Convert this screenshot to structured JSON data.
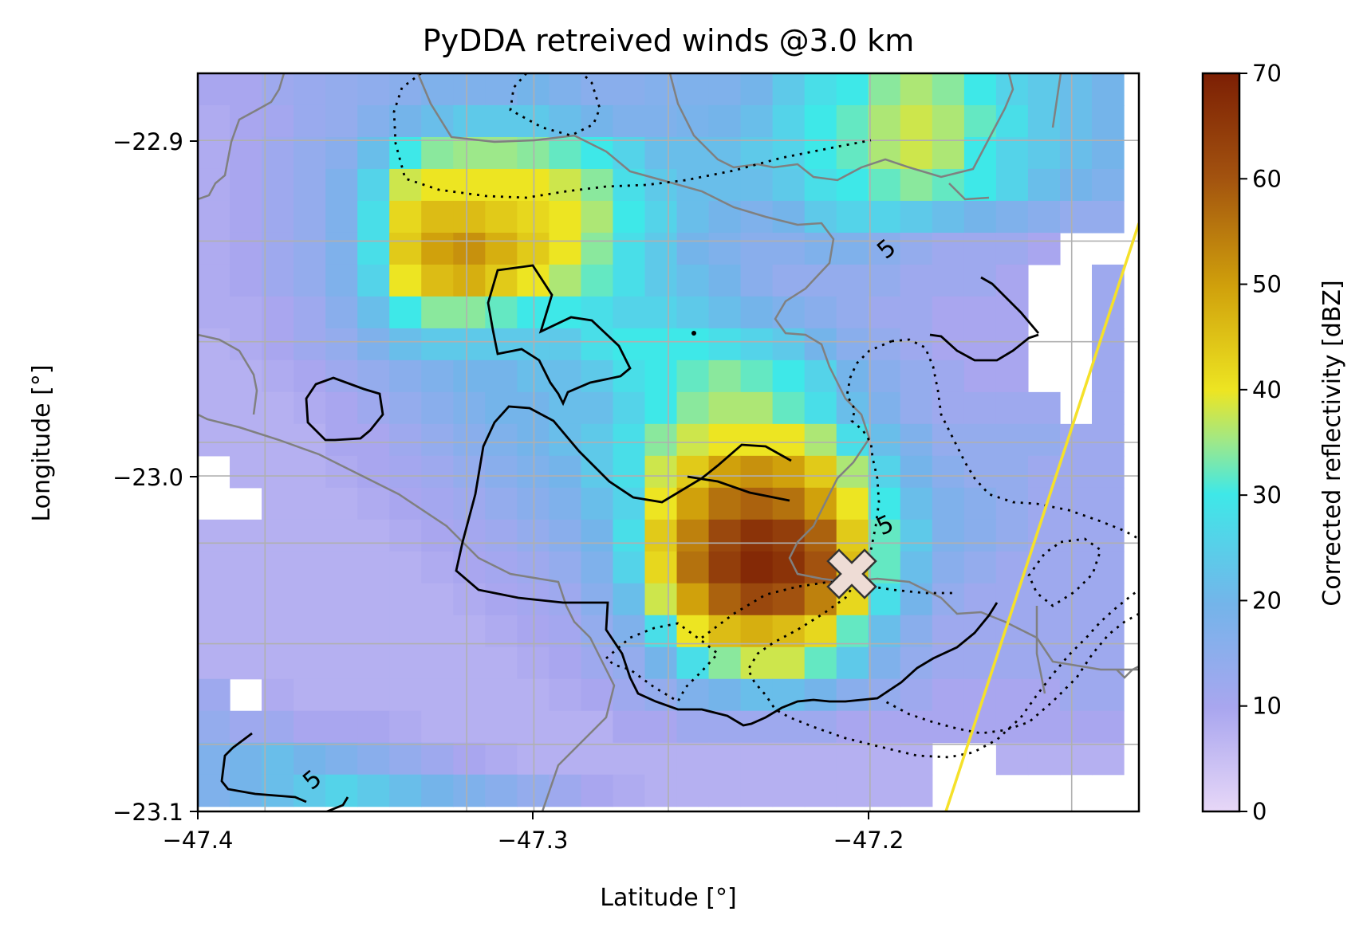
{
  "chart_data": {
    "type": "heatmap",
    "title": "PyDDA retreived winds @3.0 km",
    "xlabel": "Latitude [°]",
    "ylabel": "Longitude [°]",
    "xlim": [
      -47.4,
      -47.12
    ],
    "ylim": [
      -23.1,
      -22.88
    ],
    "x_ticks": [
      "−47.4",
      "−47.3",
      "−47.2"
    ],
    "y_ticks": [
      "−22.9",
      "−23.0",
      "−23.1"
    ],
    "grid": true,
    "colorbar": {
      "label": "Corrected reflectivity [dBZ]",
      "range": [
        0,
        70
      ],
      "ticks": [
        "0",
        "10",
        "20",
        "30",
        "40",
        "50",
        "60",
        "70"
      ]
    },
    "reflectivity_grid": {
      "x0": -47.4,
      "y0": -22.88,
      "dx": 0.0095,
      "dy": -0.0095,
      "rows": [
        [
          10,
          10,
          12,
          13,
          14,
          15,
          16,
          18,
          18,
          18,
          20,
          18,
          16,
          16,
          17,
          18,
          18,
          20,
          24,
          28,
          30,
          34,
          36,
          34,
          30,
          26,
          24,
          22,
          20
        ],
        [
          9,
          10,
          11,
          13,
          14,
          17,
          20,
          22,
          24,
          24,
          24,
          22,
          20,
          18,
          18,
          19,
          20,
          22,
          26,
          30,
          32,
          36,
          38,
          36,
          32,
          28,
          24,
          22,
          20
        ],
        [
          9,
          10,
          12,
          14,
          16,
          22,
          30,
          34,
          35,
          35,
          34,
          32,
          30,
          26,
          22,
          22,
          22,
          24,
          26,
          30,
          32,
          36,
          38,
          36,
          30,
          26,
          24,
          22,
          20
        ],
        [
          9,
          10,
          12,
          14,
          18,
          26,
          38,
          40,
          40,
          40,
          40,
          38,
          34,
          28,
          24,
          22,
          22,
          22,
          24,
          28,
          30,
          32,
          34,
          32,
          30,
          26,
          22,
          20,
          18
        ],
        [
          9,
          10,
          12,
          14,
          18,
          28,
          42,
          46,
          46,
          44,
          42,
          40,
          36,
          30,
          26,
          22,
          20,
          18,
          20,
          24,
          26,
          26,
          24,
          22,
          20,
          18,
          16,
          14,
          14
        ],
        [
          9,
          10,
          12,
          14,
          18,
          28,
          44,
          50,
          52,
          48,
          44,
          40,
          34,
          28,
          24,
          20,
          18,
          16,
          16,
          18,
          18,
          16,
          14,
          12,
          12,
          12,
          10,
          -1,
          -1
        ],
        [
          9,
          10,
          12,
          14,
          18,
          26,
          40,
          46,
          48,
          44,
          40,
          36,
          32,
          28,
          24,
          22,
          20,
          16,
          14,
          14,
          14,
          14,
          12,
          12,
          12,
          10,
          -1,
          -1,
          12
        ],
        [
          9,
          9,
          10,
          12,
          16,
          22,
          30,
          34,
          34,
          32,
          30,
          30,
          28,
          26,
          26,
          24,
          22,
          20,
          18,
          16,
          14,
          12,
          12,
          10,
          10,
          10,
          -1,
          -1,
          12
        ],
        [
          8,
          9,
          10,
          12,
          14,
          18,
          22,
          24,
          24,
          24,
          24,
          24,
          28,
          30,
          30,
          30,
          28,
          26,
          24,
          20,
          16,
          14,
          12,
          10,
          10,
          10,
          -1,
          -1,
          12
        ],
        [
          8,
          8,
          9,
          10,
          12,
          14,
          16,
          18,
          20,
          20,
          22,
          22,
          24,
          28,
          30,
          32,
          34,
          32,
          30,
          26,
          20,
          16,
          14,
          12,
          10,
          10,
          -1,
          -1,
          12
        ],
        [
          8,
          8,
          8,
          9,
          10,
          12,
          14,
          16,
          18,
          20,
          20,
          22,
          22,
          26,
          30,
          34,
          36,
          36,
          32,
          28,
          22,
          18,
          14,
          12,
          12,
          12,
          12,
          -1,
          12
        ],
        [
          8,
          8,
          8,
          8,
          10,
          10,
          12,
          14,
          16,
          18,
          20,
          22,
          24,
          28,
          34,
          38,
          40,
          40,
          40,
          36,
          28,
          22,
          18,
          14,
          14,
          14,
          14,
          12,
          12
        ],
        [
          -1,
          8,
          8,
          8,
          9,
          10,
          11,
          12,
          14,
          16,
          18,
          20,
          24,
          28,
          38,
          44,
          50,
          52,
          50,
          44,
          36,
          26,
          20,
          16,
          14,
          14,
          12,
          12,
          12
        ],
        [
          -1,
          -1,
          8,
          8,
          8,
          9,
          10,
          11,
          12,
          14,
          16,
          18,
          22,
          26,
          40,
          50,
          56,
          58,
          56,
          50,
          40,
          30,
          22,
          18,
          16,
          14,
          12,
          12,
          12
        ],
        [
          8,
          8,
          8,
          8,
          8,
          8,
          9,
          10,
          11,
          12,
          14,
          16,
          20,
          28,
          44,
          54,
          62,
          66,
          64,
          58,
          44,
          32,
          24,
          18,
          16,
          14,
          12,
          12,
          12
        ],
        [
          8,
          8,
          8,
          8,
          8,
          8,
          8,
          9,
          10,
          11,
          12,
          14,
          18,
          26,
          42,
          56,
          64,
          68,
          66,
          60,
          46,
          32,
          22,
          16,
          14,
          12,
          12,
          12,
          12
        ],
        [
          8,
          8,
          8,
          8,
          8,
          8,
          8,
          8,
          9,
          10,
          11,
          12,
          16,
          22,
          38,
          50,
          58,
          62,
          60,
          54,
          42,
          28,
          20,
          14,
          12,
          12,
          12,
          12,
          12
        ],
        [
          8,
          8,
          8,
          8,
          8,
          8,
          8,
          8,
          8,
          9,
          10,
          11,
          14,
          18,
          28,
          40,
          46,
          48,
          46,
          42,
          32,
          22,
          16,
          12,
          12,
          12,
          12,
          12,
          12
        ],
        [
          8,
          8,
          8,
          8,
          8,
          8,
          8,
          8,
          8,
          8,
          9,
          10,
          12,
          14,
          20,
          28,
          34,
          38,
          38,
          32,
          24,
          18,
          14,
          12,
          12,
          12,
          12,
          12,
          12
        ],
        [
          12,
          -1,
          9,
          8,
          8,
          8,
          8,
          8,
          8,
          8,
          8,
          9,
          10,
          12,
          14,
          18,
          20,
          22,
          22,
          20,
          16,
          14,
          12,
          10,
          10,
          10,
          10,
          12,
          12
        ],
        [
          14,
          12,
          12,
          10,
          10,
          10,
          9,
          8,
          8,
          8,
          8,
          8,
          8,
          10,
          10,
          12,
          12,
          12,
          12,
          12,
          10,
          10,
          10,
          10,
          10,
          10,
          10,
          10,
          10
        ],
        [
          18,
          20,
          22,
          20,
          18,
          16,
          14,
          12,
          10,
          9,
          8,
          8,
          8,
          8,
          8,
          8,
          8,
          8,
          8,
          8,
          8,
          8,
          8,
          -1,
          -1,
          8,
          8,
          8,
          8
        ],
        [
          18,
          20,
          22,
          24,
          26,
          24,
          22,
          20,
          18,
          16,
          14,
          12,
          10,
          9,
          8,
          8,
          8,
          8,
          8,
          8,
          8,
          8,
          8,
          -1,
          -1,
          -1,
          -1,
          -1,
          -1
        ]
      ]
    },
    "contours": {
      "solid_label": "5",
      "labels": [
        "5",
        "5",
        "5"
      ]
    },
    "marker": {
      "symbol": "X",
      "lon": -47.208,
      "lat": -23.029,
      "fill": "#eedcd5",
      "edge": "#333333"
    },
    "radar_line_color": "#f5e12a",
    "boundary_color": "#808080"
  }
}
